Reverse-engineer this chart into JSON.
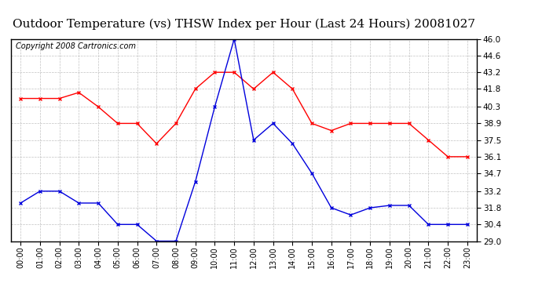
{
  "title": "Outdoor Temperature (vs) THSW Index per Hour (Last 24 Hours) 20081027",
  "copyright": "Copyright 2008 Cartronics.com",
  "hours": [
    "00:00",
    "01:00",
    "02:00",
    "03:00",
    "04:00",
    "05:00",
    "06:00",
    "07:00",
    "08:00",
    "09:00",
    "10:00",
    "11:00",
    "12:00",
    "13:00",
    "14:00",
    "15:00",
    "16:00",
    "17:00",
    "18:00",
    "19:00",
    "20:00",
    "21:00",
    "22:00",
    "23:00"
  ],
  "temp_red": [
    41.0,
    41.0,
    41.0,
    41.5,
    40.3,
    38.9,
    38.9,
    37.2,
    38.9,
    41.8,
    43.2,
    43.2,
    41.8,
    43.2,
    41.8,
    38.9,
    38.3,
    38.9,
    38.9,
    38.9,
    38.9,
    37.5,
    36.1,
    36.1
  ],
  "thsw_blue": [
    32.2,
    33.2,
    33.2,
    32.2,
    32.2,
    30.4,
    30.4,
    29.0,
    29.0,
    34.0,
    40.3,
    46.0,
    37.5,
    38.9,
    37.2,
    34.7,
    31.8,
    31.2,
    31.8,
    32.0,
    32.0,
    30.4,
    30.4,
    30.4
  ],
  "ymin": 29.0,
  "ymax": 46.0,
  "yticks": [
    29.0,
    30.4,
    31.8,
    33.2,
    34.7,
    36.1,
    37.5,
    38.9,
    40.3,
    41.8,
    43.2,
    44.6,
    46.0
  ],
  "red_color": "#ff0000",
  "blue_color": "#0000dd",
  "bg_color": "#ffffff",
  "grid_color": "#bbbbbb",
  "title_fontsize": 11,
  "copyright_fontsize": 7
}
